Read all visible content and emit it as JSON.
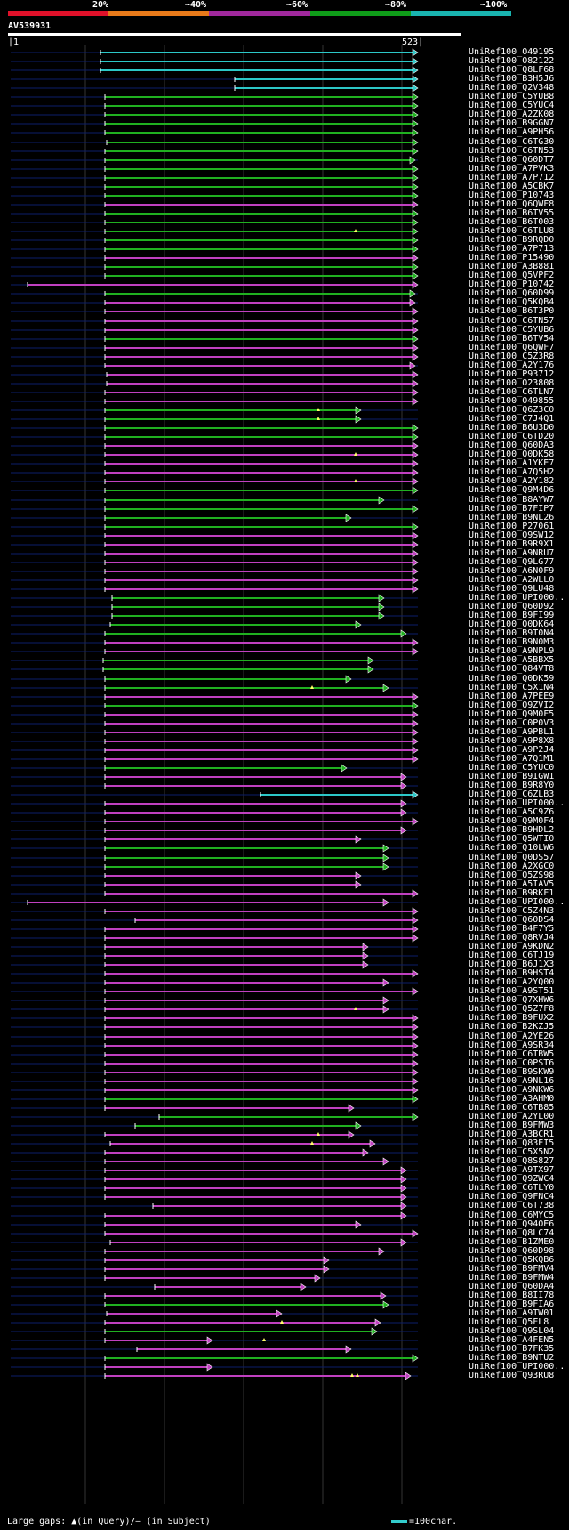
{
  "legend": {
    "colors": [
      "#e0112a",
      "#e87a1a",
      "#a0289c",
      "#0f9c19",
      "#19b4b0"
    ],
    "labels": [
      "20%",
      "~40%",
      "~60%",
      "~80%",
      "~100%"
    ]
  },
  "query": {
    "name": "AV539931",
    "start": "1",
    "end": "523"
  },
  "colors": {
    "cyan": "#2cc8c8",
    "green": "#20b020",
    "magenta": "#c040c0",
    "guide": "#0c1e6a"
  },
  "hits": [
    {
      "id": "UniRef100_O49195",
      "s": 9,
      "c": "cyan",
      "p": []
    },
    {
      "id": "UniRef100_O82122",
      "s": 9,
      "c": "cyan",
      "p": []
    },
    {
      "id": "UniRef100_Q8LF68",
      "s": 9,
      "c": "cyan",
      "p": []
    },
    {
      "id": "UniRef100_B3H5J6",
      "s": 20,
      "c": "cyan",
      "p": []
    },
    {
      "id": "UniRef100_Q2V348",
      "s": 20,
      "c": "cyan",
      "p": []
    },
    {
      "id": "UniRef100_C5YUB8",
      "s": 10,
      "c": "green",
      "p": []
    },
    {
      "id": "UniRef100_C5YUC4",
      "s": 10,
      "c": "green",
      "p": []
    },
    {
      "id": "UniRef100_A2ZK08",
      "s": 10,
      "c": "green",
      "p": []
    },
    {
      "id": "UniRef100_B9GGN7",
      "s": 10,
      "c": "green",
      "p": []
    },
    {
      "id": "UniRef100_A9PH56",
      "s": 10,
      "c": "green",
      "p": []
    },
    {
      "id": "UniRef100_C6TG30",
      "s": 10,
      "c": "green",
      "p": []
    },
    {
      "id": "UniRef100_C6TN53",
      "s": 10,
      "c": "green",
      "p": []
    },
    {
      "id": "UniRef100_Q60DT7",
      "s": 10,
      "c": "green",
      "p": []
    },
    {
      "id": "UniRef100_A7PVK3",
      "s": 10,
      "c": "green",
      "p": []
    },
    {
      "id": "UniRef100_A7P712",
      "s": 10,
      "c": "green",
      "p": []
    },
    {
      "id": "UniRef100_A5CBK7",
      "s": 10,
      "c": "green",
      "p": []
    },
    {
      "id": "UniRef100_P10743",
      "s": 10,
      "c": "green",
      "p": []
    },
    {
      "id": "UniRef100_Q6QWF8",
      "s": 10,
      "c": "magenta",
      "p": []
    },
    {
      "id": "UniRef100_B6TV55",
      "s": 10,
      "c": "green",
      "p": []
    },
    {
      "id": "UniRef100_B6T003",
      "s": 10,
      "c": "green",
      "p": []
    },
    {
      "id": "UniRef100_C6TLU8",
      "s": 10,
      "c": "green",
      "p": []
    },
    {
      "id": "UniRef100_B9RQD0",
      "s": 10,
      "c": "green",
      "p": []
    },
    {
      "id": "UniRef100_A7P713",
      "s": 10,
      "c": "green",
      "p": []
    },
    {
      "id": "UniRef100_P15490",
      "s": 10,
      "c": "magenta",
      "p": []
    },
    {
      "id": "UniRef100_A3B881",
      "s": 10,
      "c": "green",
      "p": []
    },
    {
      "id": "UniRef100_Q5VPF2",
      "s": 10,
      "c": "green",
      "p": []
    },
    {
      "id": "UniRef100_P10742",
      "s": 2,
      "c": "magenta",
      "p": []
    },
    {
      "id": "UniRef100_Q60D99",
      "s": 10,
      "c": "green",
      "p": []
    },
    {
      "id": "UniRef100_Q5KQB4",
      "s": 10,
      "c": "magenta",
      "p": []
    },
    {
      "id": "UniRef100_B6T3P0",
      "s": 10,
      "c": "magenta",
      "p": []
    },
    {
      "id": "UniRef100_C6TN57",
      "s": 10,
      "c": "magenta",
      "p": []
    },
    {
      "id": "UniRef100_C5YUB6",
      "s": 10,
      "c": "magenta",
      "p": []
    },
    {
      "id": "UniRef100_B6TV54",
      "s": 10,
      "c": "green",
      "p": []
    },
    {
      "id": "UniRef100_Q6QWF7",
      "s": 10,
      "c": "magenta",
      "p": []
    },
    {
      "id": "UniRef100_C5Z3R8",
      "s": 10,
      "c": "magenta",
      "p": []
    },
    {
      "id": "UniRef100_A2Y176",
      "s": 10,
      "c": "magenta",
      "p": []
    },
    {
      "id": "UniRef100_P93712",
      "s": 10,
      "c": "magenta",
      "p": []
    },
    {
      "id": "UniRef100_O23808",
      "s": 10,
      "c": "magenta",
      "p": []
    },
    {
      "id": "UniRef100_C6TLN7",
      "s": 10,
      "c": "magenta",
      "p": []
    },
    {
      "id": "UniRef100_O49855",
      "s": 10,
      "c": "magenta",
      "p": []
    },
    {
      "id": "UniRef100_Q6Z3C0",
      "s": 10,
      "c": "green",
      "p": []
    },
    {
      "id": "UniRef100_C7J4Q1",
      "s": 10,
      "c": "green",
      "p": []
    },
    {
      "id": "UniRef100_B6U3D0",
      "s": 10,
      "c": "green",
      "p": []
    },
    {
      "id": "UniRef100_C6TD20",
      "s": 10,
      "c": "green",
      "p": []
    },
    {
      "id": "UniRef100_Q60DA3",
      "s": 10,
      "c": "magenta",
      "p": []
    },
    {
      "id": "UniRef100_Q0DK58",
      "s": 10,
      "c": "magenta",
      "p": []
    },
    {
      "id": "UniRef100_A1YKE7",
      "s": 10,
      "c": "magenta",
      "p": []
    },
    {
      "id": "UniRef100_A7Q5H2",
      "s": 10,
      "c": "magenta",
      "p": []
    },
    {
      "id": "UniRef100_A2Y182",
      "s": 10,
      "c": "magenta",
      "p": []
    },
    {
      "id": "UniRef100_Q9M4D6",
      "s": 10,
      "c": "green",
      "p": []
    },
    {
      "id": "UniRef100_B8AYW7",
      "s": 10,
      "c": "green",
      "p": []
    },
    {
      "id": "UniRef100_B7FIP7",
      "s": 10,
      "c": "green",
      "p": []
    },
    {
      "id": "UniRef100_B9NL26",
      "s": 10,
      "c": "green",
      "p": []
    },
    {
      "id": "UniRef100_P27061",
      "s": 10,
      "c": "green",
      "p": []
    },
    {
      "id": "UniRef100_Q9SW12",
      "s": 10,
      "c": "magenta",
      "p": []
    },
    {
      "id": "UniRef100_B9R9X1",
      "s": 10,
      "c": "magenta",
      "p": []
    },
    {
      "id": "UniRef100_A9NRU7",
      "s": 10,
      "c": "magenta",
      "p": []
    },
    {
      "id": "UniRef100_Q9LG77",
      "s": 10,
      "c": "magenta",
      "p": []
    },
    {
      "id": "UniRef100_A6N0F9",
      "s": 10,
      "c": "magenta",
      "p": []
    },
    {
      "id": "UniRef100_A2WLL0",
      "s": 10,
      "c": "magenta",
      "p": []
    },
    {
      "id": "UniRef100_Q9LU48",
      "s": 10,
      "c": "magenta",
      "p": []
    },
    {
      "id": "UniRef100_UPI000..",
      "s": 10,
      "c": "green",
      "p": []
    },
    {
      "id": "UniRef100_Q60D92",
      "s": 10,
      "c": "green",
      "p": []
    },
    {
      "id": "UniRef100_B9FI99",
      "s": 10,
      "c": "green",
      "p": []
    },
    {
      "id": "UniRef100_Q0DK64",
      "s": 10,
      "c": "green",
      "p": []
    },
    {
      "id": "UniRef100_B9T0N4",
      "s": 10,
      "c": "green",
      "p": []
    },
    {
      "id": "UniRef100_B9N0M3",
      "s": 10,
      "c": "magenta",
      "p": []
    },
    {
      "id": "UniRef100_A9NPL9",
      "s": 10,
      "c": "magenta",
      "p": []
    },
    {
      "id": "UniRef100_A5BBX5",
      "s": 10,
      "c": "green",
      "p": []
    },
    {
      "id": "UniRef100_Q84VT8",
      "s": 10,
      "c": "green",
      "p": []
    },
    {
      "id": "UniRef100_Q0DK59",
      "s": 10,
      "c": "green",
      "p": []
    },
    {
      "id": "UniRef100_C5X1N4",
      "s": 10,
      "c": "green",
      "p": []
    },
    {
      "id": "UniRef100_A7PEE9",
      "s": 10,
      "c": "magenta",
      "p": []
    },
    {
      "id": "UniRef100_Q9ZVI2",
      "s": 10,
      "c": "green",
      "p": []
    },
    {
      "id": "UniRef100_Q9M0F5",
      "s": 10,
      "c": "magenta",
      "p": []
    },
    {
      "id": "UniRef100_C0P0V3",
      "s": 10,
      "c": "magenta",
      "p": []
    },
    {
      "id": "UniRef100_A9PBL1",
      "s": 10,
      "c": "magenta",
      "p": []
    },
    {
      "id": "UniRef100_A9P8X8",
      "s": 10,
      "c": "magenta",
      "p": []
    },
    {
      "id": "UniRef100_A9P2J4",
      "s": 10,
      "c": "magenta",
      "p": []
    },
    {
      "id": "UniRef100_A7Q1M1",
      "s": 10,
      "c": "magenta",
      "p": []
    },
    {
      "id": "UniRef100_C5YUC0",
      "s": 10,
      "c": "green",
      "p": []
    },
    {
      "id": "UniRef100_B9IGW1",
      "s": 10,
      "c": "magenta",
      "p": []
    },
    {
      "id": "UniRef100_B9R8Y0",
      "s": 10,
      "c": "magenta",
      "p": []
    },
    {
      "id": "UniRef100_C6ZLB3",
      "s": 10,
      "c": "cyan",
      "p": []
    },
    {
      "id": "UniRef100_UPI000..",
      "s": 10,
      "c": "magenta",
      "p": []
    },
    {
      "id": "UniRef100_A5C9Z6",
      "s": 10,
      "c": "magenta",
      "p": []
    },
    {
      "id": "UniRef100_Q9M0F4",
      "s": 10,
      "c": "magenta",
      "p": []
    },
    {
      "id": "UniRef100_B9HDL2",
      "s": 10,
      "c": "magenta",
      "p": []
    },
    {
      "id": "UniRef100_Q5WTI0",
      "s": 10,
      "c": "magenta",
      "p": []
    },
    {
      "id": "UniRef100_Q10LW6",
      "s": 10,
      "c": "green",
      "p": []
    },
    {
      "id": "UniRef100_Q0DS57",
      "s": 10,
      "c": "green",
      "p": []
    },
    {
      "id": "UniRef100_A2XGC0",
      "s": 10,
      "c": "green",
      "p": []
    },
    {
      "id": "UniRef100_Q5ZS98",
      "s": 10,
      "c": "magenta",
      "p": []
    },
    {
      "id": "UniRef100_A5IAV5",
      "s": 10,
      "c": "magenta",
      "p": []
    },
    {
      "id": "UniRef100_B9RKF1",
      "s": 10,
      "c": "magenta",
      "p": []
    },
    {
      "id": "UniRef100_UPI000..",
      "s": 10,
      "c": "magenta",
      "p": []
    },
    {
      "id": "UniRef100_C5Z4N3",
      "s": 10,
      "c": "magenta",
      "p": []
    },
    {
      "id": "UniRef100_Q60DS4",
      "s": 10,
      "c": "magenta",
      "p": []
    },
    {
      "id": "UniRef100_B4F7Y5",
      "s": 10,
      "c": "magenta",
      "p": []
    },
    {
      "id": "UniRef100_Q8RVJ4",
      "s": 10,
      "c": "magenta",
      "p": []
    },
    {
      "id": "UniRef100_A9KDN2",
      "s": 10,
      "c": "magenta",
      "p": []
    },
    {
      "id": "UniRef100_C6TJ19",
      "s": 10,
      "c": "magenta",
      "p": []
    },
    {
      "id": "UniRef100_B6J1X3",
      "s": 10,
      "c": "magenta",
      "p": []
    },
    {
      "id": "UniRef100_B9HST4",
      "s": 10,
      "c": "magenta",
      "p": []
    },
    {
      "id": "UniRef100_A2YQ00",
      "s": 10,
      "c": "magenta",
      "p": []
    },
    {
      "id": "UniRef100_A9ST51",
      "s": 10,
      "c": "magenta",
      "p": []
    },
    {
      "id": "UniRef100_Q7XHW6",
      "s": 10,
      "c": "magenta",
      "p": []
    },
    {
      "id": "UniRef100_Q5Z7F8",
      "s": 10,
      "c": "magenta",
      "p": []
    },
    {
      "id": "UniRef100_B9FUX2",
      "s": 10,
      "c": "magenta",
      "p": []
    },
    {
      "id": "UniRef100_B2KZJ5",
      "s": 10,
      "c": "magenta",
      "p": []
    },
    {
      "id": "UniRef100_A2YE26",
      "s": 10,
      "c": "magenta",
      "p": []
    },
    {
      "id": "UniRef100_A9SR34",
      "s": 10,
      "c": "magenta",
      "p": []
    },
    {
      "id": "UniRef100_C6TBW5",
      "s": 10,
      "c": "magenta",
      "p": []
    },
    {
      "id": "UniRef100_C0PST6",
      "s": 10,
      "c": "magenta",
      "p": []
    },
    {
      "id": "UniRef100_B9SKW9",
      "s": 10,
      "c": "magenta",
      "p": []
    },
    {
      "id": "UniRef100_A9NL16",
      "s": 10,
      "c": "magenta",
      "p": []
    },
    {
      "id": "UniRef100_A9NKW6",
      "s": 10,
      "c": "magenta",
      "p": []
    },
    {
      "id": "UniRef100_A3AHM0",
      "s": 10,
      "c": "green",
      "p": []
    },
    {
      "id": "UniRef100_C6TB85",
      "s": 10,
      "c": "magenta",
      "p": []
    },
    {
      "id": "UniRef100_A2YL00",
      "s": 10,
      "c": "green",
      "p": []
    },
    {
      "id": "UniRef100_B9FMW3",
      "s": 10,
      "c": "green",
      "p": []
    },
    {
      "id": "UniRef100_A3BCR1",
      "s": 10,
      "c": "magenta",
      "p": []
    },
    {
      "id": "UniRef100_Q83EI5",
      "s": 10,
      "c": "magenta",
      "p": []
    },
    {
      "id": "UniRef100_C5X5N2",
      "s": 10,
      "c": "magenta",
      "p": []
    },
    {
      "id": "UniRef100_Q8S827",
      "s": 10,
      "c": "magenta",
      "p": []
    },
    {
      "id": "UniRef100_A9TX97",
      "s": 10,
      "c": "magenta",
      "p": []
    },
    {
      "id": "UniRef100_Q9ZWC4",
      "s": 10,
      "c": "magenta",
      "p": []
    },
    {
      "id": "UniRef100_C6TLY0",
      "s": 10,
      "c": "magenta",
      "p": []
    },
    {
      "id": "UniRef100_Q9FNC4",
      "s": 10,
      "c": "magenta",
      "p": []
    },
    {
      "id": "UniRef100_C6T738",
      "s": 10,
      "c": "magenta",
      "p": []
    },
    {
      "id": "UniRef100_C6MYC5",
      "s": 10,
      "c": "magenta",
      "p": []
    },
    {
      "id": "UniRef100_Q94OE6",
      "s": 10,
      "c": "magenta",
      "p": []
    },
    {
      "id": "UniRef100_Q8LC74",
      "s": 10,
      "c": "magenta",
      "p": []
    },
    {
      "id": "UniRef100_B1ZME0",
      "s": 10,
      "c": "magenta",
      "p": []
    },
    {
      "id": "UniRef100_Q60D98",
      "s": 10,
      "c": "magenta",
      "p": []
    },
    {
      "id": "UniRef100_Q5KQB6",
      "s": 10,
      "c": "magenta",
      "p": []
    },
    {
      "id": "UniRef100_B9FMV4",
      "s": 10,
      "c": "magenta",
      "p": []
    },
    {
      "id": "UniRef100_B9FMW4",
      "s": 10,
      "c": "magenta",
      "p": []
    },
    {
      "id": "UniRef100_Q60DA4",
      "s": 10,
      "c": "magenta",
      "p": []
    },
    {
      "id": "UniRef100_B8II78",
      "s": 10,
      "c": "magenta",
      "p": []
    },
    {
      "id": "UniRef100_B9FIA6",
      "s": 10,
      "c": "green",
      "p": []
    },
    {
      "id": "UniRef100_A9TW01",
      "s": 10,
      "c": "magenta",
      "p": []
    },
    {
      "id": "UniRef100_Q5FL8",
      "s": 10,
      "c": "magenta",
      "p": []
    },
    {
      "id": "UniRef100_Q9SL04",
      "s": 10,
      "c": "green",
      "p": []
    },
    {
      "id": "UniRef100_A4FEN5",
      "s": 10,
      "c": "magenta",
      "p": []
    },
    {
      "id": "UniRef100_B7FK35",
      "s": 10,
      "c": "magenta",
      "p": []
    },
    {
      "id": "UniRef100_B9NTU2",
      "s": 10,
      "c": "green",
      "p": []
    },
    {
      "id": "UniRef100_UPI000..",
      "s": 10,
      "c": "magenta",
      "p": []
    },
    {
      "id": "UniRef100_Q93RU8",
      "s": 10,
      "c": "magenta",
      "p": []
    }
  ],
  "footer": {
    "left": "Large gaps: ▲(in Query)/— (in Subject)",
    "right": "=100char."
  }
}
